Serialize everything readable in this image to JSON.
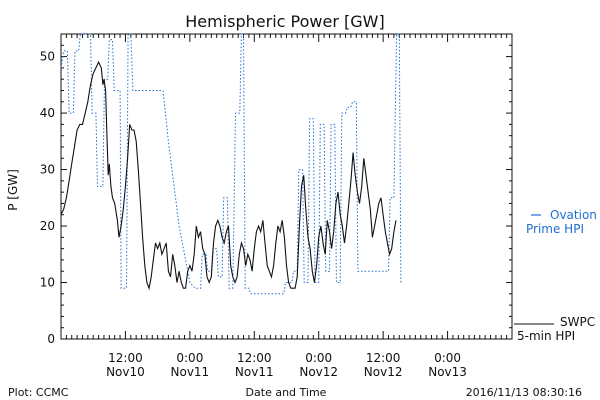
{
  "chart_data": {
    "type": "line",
    "title": "Hemispheric Power [GW]",
    "ylabel": "P [GW]",
    "xlabel": "Date and Time",
    "ylim": [
      0,
      54
    ],
    "yticks": [
      0,
      10,
      20,
      30,
      40,
      50
    ],
    "xlim": [
      0,
      84
    ],
    "xticks": [
      {
        "hours": 12,
        "label1": "12:00",
        "label2": "Nov10"
      },
      {
        "hours": 24,
        "label1": "0:00",
        "label2": "Nov11"
      },
      {
        "hours": 36,
        "label1": "12:00",
        "label2": "Nov11"
      },
      {
        "hours": 48,
        "label1": "0:00",
        "label2": "Nov12"
      },
      {
        "hours": 60,
        "label1": "12:00",
        "label2": "Nov12"
      },
      {
        "hours": 72,
        "label1": "0:00",
        "label2": "Nov13"
      }
    ],
    "footer_left": "Plot: CCMC",
    "footer_right": "2016/11/13 08:30:16",
    "series": [
      {
        "name_line1": "Ovation",
        "name_line2": "Prime HPI",
        "color": "#1f6fd1",
        "dashed": true,
        "points": [
          [
            0,
            48
          ],
          [
            0.5,
            51
          ],
          [
            1.2,
            51
          ],
          [
            1.5,
            40
          ],
          [
            2.3,
            40
          ],
          [
            2.6,
            51
          ],
          [
            3.3,
            51
          ],
          [
            3.6,
            54
          ],
          [
            5.5,
            54
          ],
          [
            5.8,
            40
          ],
          [
            6.5,
            40
          ],
          [
            6.8,
            27
          ],
          [
            7.8,
            27
          ],
          [
            8.1,
            46
          ],
          [
            8.7,
            46
          ],
          [
            9.0,
            53
          ],
          [
            9.6,
            53
          ],
          [
            9.9,
            44
          ],
          [
            11.0,
            44
          ],
          [
            11.2,
            9
          ],
          [
            12.2,
            9
          ],
          [
            12.5,
            54
          ],
          [
            13.0,
            54
          ],
          [
            13.4,
            44
          ],
          [
            19.0,
            44
          ],
          [
            20.0,
            35
          ],
          [
            22.0,
            20
          ],
          [
            24.0,
            10
          ],
          [
            25.0,
            9
          ],
          [
            26.0,
            9
          ],
          [
            26.3,
            15
          ],
          [
            27.0,
            15
          ],
          [
            27.3,
            12
          ],
          [
            28.0,
            12
          ],
          [
            28.3,
            16
          ],
          [
            29.0,
            16
          ],
          [
            29.3,
            11
          ],
          [
            30.0,
            11
          ],
          [
            30.3,
            25
          ],
          [
            31.0,
            25
          ],
          [
            31.3,
            9
          ],
          [
            32.0,
            9
          ],
          [
            32.5,
            40
          ],
          [
            33.3,
            40
          ],
          [
            33.6,
            54
          ],
          [
            34.0,
            54
          ],
          [
            34.3,
            9
          ],
          [
            35.0,
            9
          ],
          [
            35.3,
            8
          ],
          [
            41.5,
            8
          ],
          [
            41.8,
            10
          ],
          [
            43.0,
            10
          ],
          [
            43.3,
            12
          ],
          [
            44.0,
            12
          ],
          [
            44.3,
            30
          ],
          [
            45.0,
            30
          ],
          [
            45.3,
            10
          ],
          [
            46.0,
            10
          ],
          [
            46.3,
            39
          ],
          [
            47.0,
            39
          ],
          [
            47.3,
            10
          ],
          [
            48.0,
            10
          ],
          [
            48.3,
            38
          ],
          [
            49.0,
            38
          ],
          [
            49.3,
            12
          ],
          [
            50.0,
            12
          ],
          [
            50.3,
            38
          ],
          [
            51.0,
            38
          ],
          [
            51.3,
            10
          ],
          [
            52.0,
            10
          ],
          [
            52.3,
            40
          ],
          [
            53.0,
            40
          ],
          [
            53.3,
            41
          ],
          [
            54.0,
            41
          ],
          [
            54.3,
            42
          ],
          [
            55.0,
            42
          ],
          [
            55.3,
            12
          ],
          [
            61.0,
            12
          ],
          [
            61.3,
            25
          ],
          [
            62.0,
            25
          ],
          [
            62.5,
            54
          ],
          [
            63.0,
            54
          ],
          [
            63.3,
            10
          ]
        ]
      },
      {
        "name_line1": "SWPC",
        "name_line2": "5-min HPI",
        "color": "#111111",
        "dashed": false,
        "points": [
          [
            0,
            22
          ],
          [
            0.5,
            23
          ],
          [
            1.0,
            25
          ],
          [
            1.5,
            28
          ],
          [
            2.0,
            31
          ],
          [
            2.5,
            34
          ],
          [
            3.0,
            37
          ],
          [
            3.5,
            38
          ],
          [
            4.0,
            38
          ],
          [
            4.5,
            40
          ],
          [
            5.0,
            42
          ],
          [
            5.5,
            45
          ],
          [
            6.0,
            47
          ],
          [
            6.5,
            48
          ],
          [
            7.0,
            49
          ],
          [
            7.5,
            48
          ],
          [
            7.8,
            45
          ],
          [
            8.0,
            46
          ],
          [
            8.3,
            44
          ],
          [
            8.5,
            38
          ],
          [
            8.8,
            29
          ],
          [
            9.0,
            31
          ],
          [
            9.3,
            27
          ],
          [
            9.6,
            25
          ],
          [
            10.0,
            24
          ],
          [
            10.5,
            21
          ],
          [
            10.8,
            18
          ],
          [
            11.2,
            20
          ],
          [
            11.6,
            23
          ],
          [
            12.0,
            27
          ],
          [
            12.4,
            32
          ],
          [
            12.8,
            38
          ],
          [
            13.2,
            37
          ],
          [
            13.6,
            37
          ],
          [
            14.0,
            35
          ],
          [
            14.4,
            30
          ],
          [
            14.8,
            24
          ],
          [
            15.2,
            18
          ],
          [
            15.6,
            13
          ],
          [
            16.0,
            10
          ],
          [
            16.4,
            9
          ],
          [
            16.8,
            11
          ],
          [
            17.2,
            14
          ],
          [
            17.6,
            17
          ],
          [
            18.0,
            16
          ],
          [
            18.4,
            17
          ],
          [
            18.8,
            15
          ],
          [
            19.2,
            16
          ],
          [
            19.6,
            17
          ],
          [
            20.0,
            12
          ],
          [
            20.4,
            11
          ],
          [
            20.8,
            15
          ],
          [
            21.2,
            13
          ],
          [
            21.6,
            10
          ],
          [
            22.0,
            12
          ],
          [
            22.4,
            10
          ],
          [
            22.8,
            9
          ],
          [
            23.2,
            9
          ],
          [
            23.6,
            12
          ],
          [
            24.0,
            13
          ],
          [
            24.4,
            12
          ],
          [
            24.8,
            15
          ],
          [
            25.2,
            20
          ],
          [
            25.6,
            18
          ],
          [
            26.0,
            19
          ],
          [
            26.4,
            16
          ],
          [
            26.8,
            15
          ],
          [
            27.2,
            11
          ],
          [
            27.6,
            10
          ],
          [
            28.0,
            11
          ],
          [
            28.4,
            17
          ],
          [
            28.8,
            20
          ],
          [
            29.2,
            21
          ],
          [
            29.6,
            20
          ],
          [
            30.0,
            18
          ],
          [
            30.4,
            17
          ],
          [
            30.8,
            19
          ],
          [
            31.2,
            20
          ],
          [
            31.6,
            13
          ],
          [
            32.0,
            11
          ],
          [
            32.4,
            10
          ],
          [
            32.8,
            11
          ],
          [
            33.2,
            15
          ],
          [
            33.6,
            17
          ],
          [
            34.0,
            16
          ],
          [
            34.4,
            13
          ],
          [
            34.8,
            15
          ],
          [
            35.2,
            14
          ],
          [
            35.6,
            12
          ],
          [
            36.0,
            16
          ],
          [
            36.4,
            19
          ],
          [
            36.8,
            20
          ],
          [
            37.2,
            19
          ],
          [
            37.6,
            21
          ],
          [
            38.0,
            17
          ],
          [
            38.4,
            13
          ],
          [
            38.8,
            12
          ],
          [
            39.2,
            11
          ],
          [
            39.6,
            13
          ],
          [
            40.0,
            17
          ],
          [
            40.4,
            20
          ],
          [
            40.8,
            19
          ],
          [
            41.2,
            21
          ],
          [
            41.6,
            18
          ],
          [
            42.0,
            13
          ],
          [
            42.4,
            10
          ],
          [
            42.8,
            9
          ],
          [
            43.2,
            9
          ],
          [
            43.6,
            9
          ],
          [
            44.0,
            11
          ],
          [
            44.4,
            20
          ],
          [
            44.8,
            27
          ],
          [
            45.2,
            29
          ],
          [
            45.6,
            23
          ],
          [
            46.0,
            18
          ],
          [
            46.4,
            16
          ],
          [
            46.8,
            12
          ],
          [
            47.2,
            10
          ],
          [
            47.6,
            13
          ],
          [
            48.0,
            18
          ],
          [
            48.4,
            20
          ],
          [
            48.8,
            17
          ],
          [
            49.2,
            15
          ],
          [
            49.6,
            21
          ],
          [
            50.0,
            19
          ],
          [
            50.4,
            16
          ],
          [
            50.8,
            19
          ],
          [
            51.2,
            24
          ],
          [
            51.6,
            26
          ],
          [
            52.0,
            22
          ],
          [
            52.4,
            20
          ],
          [
            52.8,
            17
          ],
          [
            53.2,
            20
          ],
          [
            53.6,
            24
          ],
          [
            54.0,
            28
          ],
          [
            54.4,
            33
          ],
          [
            54.8,
            29
          ],
          [
            55.2,
            26
          ],
          [
            55.6,
            24
          ],
          [
            56.0,
            27
          ],
          [
            56.4,
            32
          ],
          [
            56.8,
            29
          ],
          [
            57.2,
            26
          ],
          [
            57.6,
            23
          ],
          [
            58.0,
            18
          ],
          [
            58.4,
            20
          ],
          [
            58.8,
            22
          ],
          [
            59.2,
            24
          ],
          [
            59.6,
            25
          ],
          [
            60.0,
            22
          ],
          [
            60.4,
            19
          ],
          [
            60.8,
            17
          ],
          [
            61.2,
            15
          ],
          [
            61.6,
            16
          ],
          [
            62.0,
            19
          ],
          [
            62.4,
            21
          ]
        ]
      }
    ]
  }
}
